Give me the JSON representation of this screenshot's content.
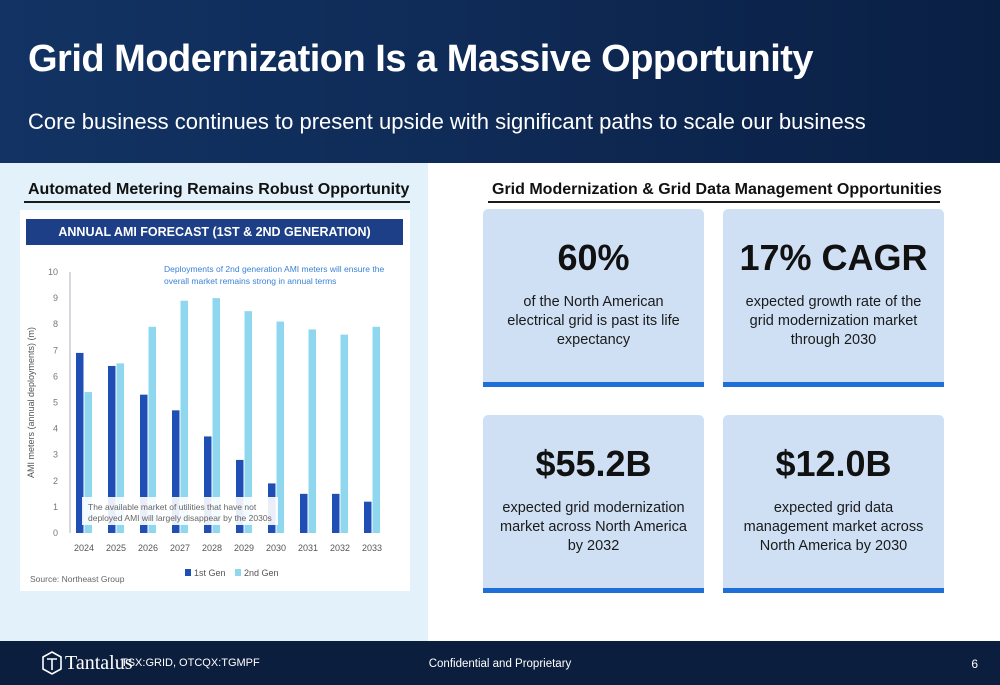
{
  "header": {
    "title": "Grid Modernization Is a Massive Opportunity",
    "subtitle": "Core business continues to present upside with significant paths to scale our business"
  },
  "left_section": {
    "heading": "Automated Metering Remains Robust Opportunity",
    "chart_banner": "ANNUAL AMI FORECAST (1ST & 2ND GENERATION)"
  },
  "right_section": {
    "heading": "Grid Modernization & Grid Data Management Opportunities",
    "stats": [
      {
        "value": "60%",
        "description": "of the North American electrical grid is past its life expectancy"
      },
      {
        "value": "17% CAGR",
        "description": "expected growth rate of the grid modernization market through 2030"
      },
      {
        "value": "$55.2B",
        "description": "expected grid modernization market across North America by 2032"
      },
      {
        "value": "$12.0B",
        "description": "expected grid data management market across North America by 2030"
      }
    ]
  },
  "chart_data": {
    "type": "bar",
    "title": "ANNUAL AMI FORECAST (1ST & 2ND GENERATION)",
    "categories": [
      "2024",
      "2025",
      "2026",
      "2027",
      "2028",
      "2029",
      "2030",
      "2031",
      "2032",
      "2033"
    ],
    "series": [
      {
        "name": "1st Gen",
        "color": "#1f4fb5",
        "values": [
          6.9,
          6.4,
          5.3,
          4.7,
          3.7,
          2.8,
          1.9,
          1.5,
          1.5,
          1.2
        ]
      },
      {
        "name": "2nd Gen",
        "color": "#8fd7ef",
        "values": [
          5.4,
          6.5,
          7.9,
          8.9,
          9.0,
          8.5,
          8.1,
          7.8,
          7.6,
          7.9
        ]
      }
    ],
    "ylabel": "AMI meters (annual deployments) (m)",
    "xlabel": "",
    "ylim": [
      0,
      10
    ],
    "yticks": [
      0,
      1,
      2,
      3,
      4,
      5,
      6,
      7,
      8,
      9,
      10
    ],
    "grid": false,
    "legend": "bottom",
    "annotations": [
      "Deployments of 2nd generation AMI meters will ensure the overall market remains strong in annual terms",
      "The available market of utilities that have not deployed AMI will largely disappear by the 2030s"
    ],
    "source": "Source: Northeast Group"
  },
  "footer": {
    "logo_text": "Tantalus",
    "ticker": "TSX:GRID, OTCQX:TGMPF",
    "confidential": "Confidential and Proprietary",
    "page_number": "6"
  },
  "colors": {
    "header_bg": "#123364",
    "banner_bg": "#1d3f87",
    "card_bg": "#cfe0f5",
    "card_accent": "#1f6fd8",
    "left_panel_bg": "#e3f1fb",
    "footer_bg": "#0c1e3d"
  }
}
